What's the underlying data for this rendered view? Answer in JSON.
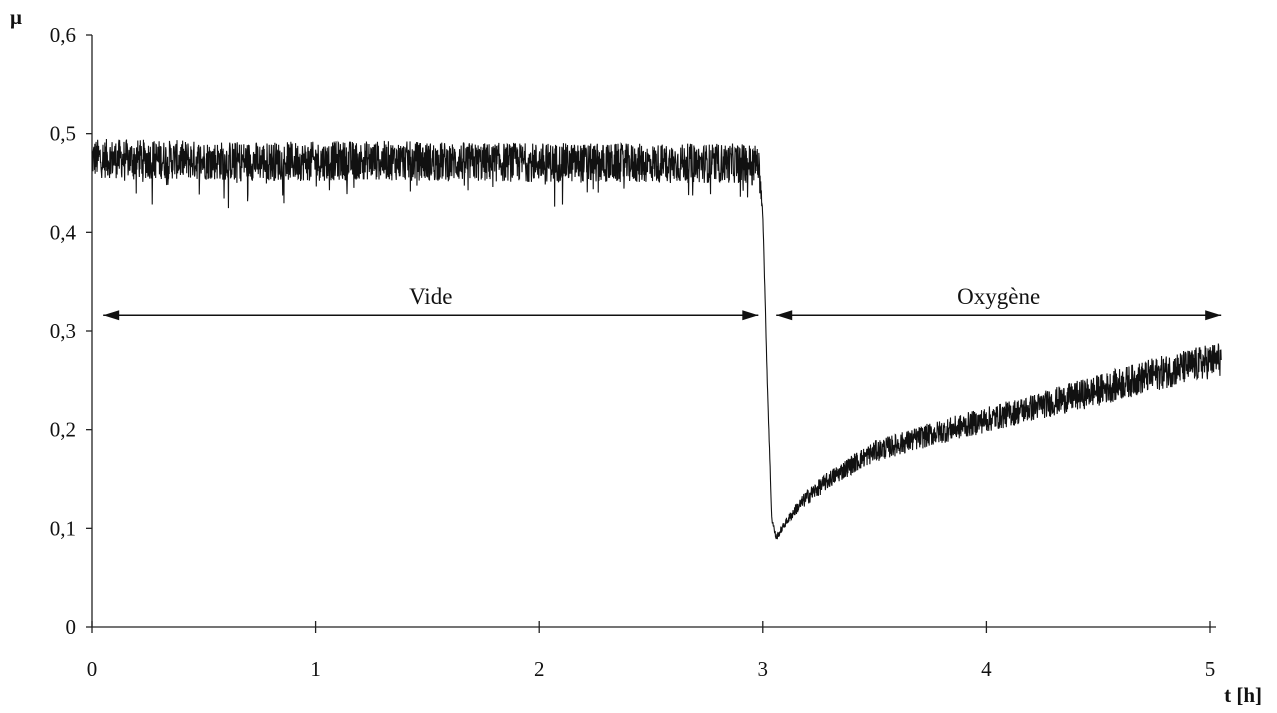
{
  "chart_data": {
    "type": "line",
    "title": "",
    "xlabel": "t [h]",
    "ylabel": "μ",
    "xlim": [
      0,
      5
    ],
    "ylim": [
      0,
      0.6
    ],
    "x_ticks": [
      0,
      1,
      2,
      3,
      4,
      5
    ],
    "x_tick_labels": [
      "0",
      "1",
      "2",
      "3",
      "4",
      "5"
    ],
    "y_ticks": [
      0,
      0.1,
      0.2,
      0.3,
      0.4,
      0.5,
      0.6
    ],
    "y_tick_labels": [
      "0",
      "0,1",
      "0,2",
      "0,3",
      "0,4",
      "0,5",
      "0,6"
    ],
    "grid": false,
    "legend": "none",
    "line_color": "#111111",
    "series": [
      {
        "x": [
          0,
          0.25,
          0.5,
          0.75,
          1.0,
          1.25,
          1.5,
          1.75,
          2.0,
          2.25,
          2.5,
          2.75,
          2.98,
          3.0,
          3.02,
          3.04,
          3.06,
          3.1,
          3.15,
          3.2,
          3.3,
          3.4,
          3.5,
          3.75,
          4.0,
          4.25,
          4.5,
          4.75,
          5.05
        ],
        "y": [
          0.475,
          0.474,
          0.473,
          0.472,
          0.472,
          0.473,
          0.472,
          0.471,
          0.471,
          0.47,
          0.47,
          0.47,
          0.47,
          0.42,
          0.25,
          0.11,
          0.09,
          0.105,
          0.12,
          0.132,
          0.15,
          0.165,
          0.178,
          0.195,
          0.21,
          0.225,
          0.24,
          0.256,
          0.272
        ],
        "noise_amplitude": [
          0.02,
          0.02,
          0.02,
          0.02,
          0.02,
          0.02,
          0.02,
          0.02,
          0.02,
          0.02,
          0.02,
          0.02,
          0.02,
          0.003,
          0.003,
          0.003,
          0.003,
          0.004,
          0.006,
          0.008,
          0.009,
          0.01,
          0.011,
          0.012,
          0.013,
          0.014,
          0.016,
          0.017,
          0.018
        ]
      }
    ],
    "annotations": [
      {
        "text": "Vide",
        "x_from": 0.05,
        "x_to": 2.98,
        "y": 0.316
      },
      {
        "text": "Oxygène",
        "x_from": 3.06,
        "x_to": 5.05,
        "y": 0.316
      }
    ]
  }
}
